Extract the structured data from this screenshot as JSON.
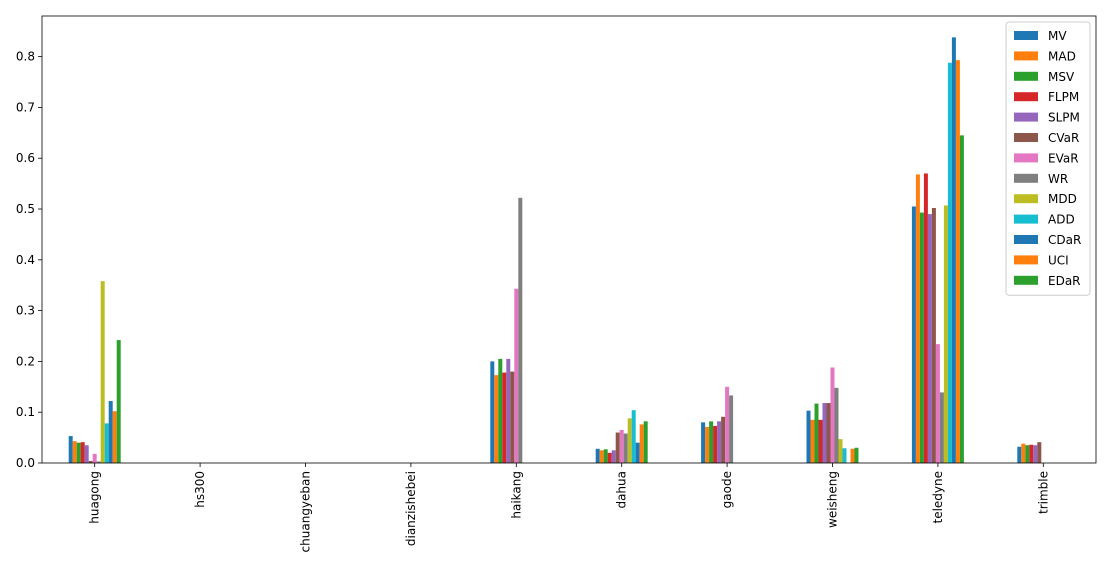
{
  "chart_data": {
    "type": "bar",
    "categories": [
      "huagong",
      "hs300",
      "chuangyeban",
      "dianzishebei",
      "haikang",
      "dahua",
      "gaode",
      "weisheng",
      "teledyne",
      "trimble"
    ],
    "ylim": [
      0,
      0.88
    ],
    "yticks": [
      0.0,
      0.1,
      0.2,
      0.3,
      0.4,
      0.5,
      0.6,
      0.7,
      0.8
    ],
    "ytick_labels": [
      "0.0",
      "0.1",
      "0.2",
      "0.3",
      "0.4",
      "0.5",
      "0.6",
      "0.7",
      "0.8"
    ],
    "legend_position": "top-right",
    "grid": false,
    "series": [
      {
        "name": "MV",
        "color": "#1f77b4",
        "values": [
          0.053,
          0,
          0,
          0,
          0.2,
          0.028,
          0.08,
          0.103,
          0.505,
          0.032
        ]
      },
      {
        "name": "MAD",
        "color": "#ff7f0e",
        "values": [
          0.043,
          0,
          0,
          0,
          0.173,
          0.025,
          0.071,
          0.085,
          0.568,
          0.038
        ]
      },
      {
        "name": "MSV",
        "color": "#2ca02c",
        "values": [
          0.04,
          0,
          0,
          0,
          0.205,
          0.027,
          0.082,
          0.117,
          0.493,
          0.035
        ]
      },
      {
        "name": "FLPM",
        "color": "#d62728",
        "values": [
          0.041,
          0,
          0,
          0,
          0.178,
          0.02,
          0.073,
          0.085,
          0.57,
          0.036
        ]
      },
      {
        "name": "SLPM",
        "color": "#9467bd",
        "values": [
          0.035,
          0,
          0,
          0,
          0.205,
          0.025,
          0.082,
          0.118,
          0.49,
          0.035
        ]
      },
      {
        "name": "CVaR",
        "color": "#8c564b",
        "values": [
          0.004,
          0,
          0,
          0,
          0.18,
          0.06,
          0.091,
          0.118,
          0.502,
          0.041
        ]
      },
      {
        "name": "EVaR",
        "color": "#e377c2",
        "values": [
          0.018,
          0,
          0,
          0,
          0.343,
          0.065,
          0.15,
          0.188,
          0.234,
          0
        ]
      },
      {
        "name": "WR",
        "color": "#7f7f7f",
        "values": [
          0.003,
          0,
          0,
          0,
          0.522,
          0.058,
          0.133,
          0.148,
          0.139,
          0
        ]
      },
      {
        "name": "MDD",
        "color": "#bcbd22",
        "values": [
          0.358,
          0,
          0,
          0,
          0,
          0.088,
          0,
          0.047,
          0.507,
          0
        ]
      },
      {
        "name": "ADD",
        "color": "#17becf",
        "values": [
          0.078,
          0,
          0,
          0,
          0,
          0.104,
          0,
          0.029,
          0.788,
          0
        ]
      },
      {
        "name": "CDaR",
        "color": "#1f77b4",
        "values": [
          0.122,
          0,
          0,
          0,
          0,
          0.04,
          0,
          0,
          0.838,
          0
        ]
      },
      {
        "name": "UCI",
        "color": "#ff7f0e",
        "values": [
          0.102,
          0,
          0,
          0,
          0,
          0.076,
          0,
          0.028,
          0.793,
          0
        ]
      },
      {
        "name": "EDaR",
        "color": "#2ca02c",
        "values": [
          0.242,
          0,
          0,
          0,
          0,
          0.082,
          0,
          0.03,
          0.645,
          0
        ]
      }
    ]
  }
}
